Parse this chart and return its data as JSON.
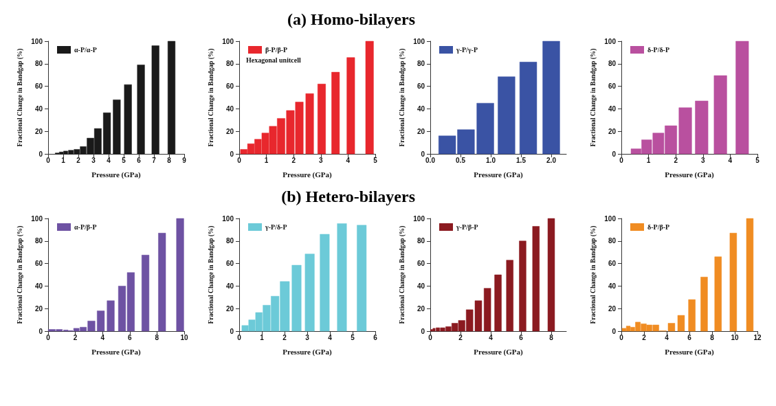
{
  "chart_data": [
    {
      "type": "bar",
      "xlabel": "Pressure (GPa)",
      "ylabel": "Fractional Change in Bandgap (%)",
      "legend": "top left",
      "grid": false,
      "xlim": [
        0,
        9
      ],
      "xticks": [
        0,
        1,
        2,
        3,
        4,
        5,
        6,
        7,
        8,
        9
      ],
      "ylim": [
        0,
        100
      ],
      "yticks": [
        0,
        20,
        40,
        60,
        80,
        100
      ],
      "series": [
        {
          "name": "α-P/α-P",
          "color": "#1a1a1a",
          "x": [
            0.6,
            0.87,
            1.16,
            1.51,
            1.9,
            2.32,
            2.8,
            3.29,
            3.89,
            4.54,
            5.28,
            6.14,
            7.1,
            8.16
          ],
          "values": [
            0.8,
            1.7,
            2.5,
            3.2,
            4,
            6.5,
            14,
            22.5,
            36.5,
            48,
            61.5,
            79,
            96,
            100
          ]
        }
      ]
    },
    {
      "type": "bar",
      "title": "(a) Homo-bilayers",
      "xlabel": "Pressure (GPa)",
      "ylabel": "Fractional Change in Bandgap (%)",
      "legend": "top left",
      "grid": false,
      "annotations": [
        "Hexagonal unitcell"
      ],
      "xlim": [
        0,
        5
      ],
      "xticks": [
        0,
        1,
        2,
        3,
        4,
        5
      ],
      "ylim": [
        0,
        100
      ],
      "yticks": [
        0,
        20,
        40,
        60,
        80,
        100
      ],
      "series": [
        {
          "name": "β-P/β-P",
          "color": "#e8272d",
          "x": [
            0.17,
            0.43,
            0.69,
            0.96,
            1.24,
            1.54,
            1.88,
            2.21,
            2.59,
            3.03,
            3.54,
            4.1,
            4.79
          ],
          "values": [
            4,
            9,
            13,
            18.5,
            24.5,
            31.5,
            38.5,
            46,
            53.5,
            62,
            72.5,
            85.5,
            100
          ]
        }
      ]
    },
    {
      "type": "bar",
      "xlabel": "Pressure (GPa)",
      "ylabel": "Fractional Change in Bandgap (%)",
      "legend": "top left",
      "grid": false,
      "xlim": [
        0,
        2.25
      ],
      "xticks": [
        {
          "value": 0,
          "label": "0.0"
        },
        {
          "value": 0.5,
          "label": "0.5"
        },
        {
          "value": 1,
          "label": "1.0"
        },
        {
          "value": 1.5,
          "label": "1.5"
        },
        {
          "value": 2,
          "label": "2.0"
        }
      ],
      "ylim": [
        0,
        100
      ],
      "yticks": [
        0,
        20,
        40,
        60,
        80,
        100
      ],
      "series": [
        {
          "name": "γ-P/γ-P",
          "color": "#3a53a4",
          "x": [
            0.28,
            0.59,
            0.91,
            1.26,
            1.62,
            2.0
          ],
          "values": [
            16,
            21.5,
            45,
            68.5,
            81.5,
            100
          ]
        }
      ]
    },
    {
      "type": "bar",
      "xlabel": "Pressure (GPa)",
      "ylabel": "Fractional Change in Bandgap (%)",
      "legend": "top left",
      "grid": false,
      "xlim": [
        0,
        5
      ],
      "xticks": [
        0,
        1,
        2,
        3,
        4,
        5
      ],
      "ylim": [
        0,
        100
      ],
      "yticks": [
        0,
        20,
        40,
        60,
        80,
        100
      ],
      "series": [
        {
          "name": "δ-P/δ-P",
          "color": "#b9509f",
          "x": [
            0.54,
            0.93,
            1.36,
            1.82,
            2.35,
            2.95,
            3.64,
            4.44
          ],
          "values": [
            4.5,
            12.5,
            18.5,
            25,
            41,
            47,
            69.5,
            100
          ]
        }
      ]
    },
    {
      "type": "bar",
      "xlabel": "Pressure (GPa)",
      "ylabel": "Fractional Change in Bandgap (%)",
      "legend": "top left",
      "grid": false,
      "xlim": [
        0,
        10
      ],
      "xticks": [
        0,
        2,
        4,
        6,
        8,
        10
      ],
      "ylim": [
        0,
        100
      ],
      "yticks": [
        0,
        20,
        40,
        60,
        80,
        100
      ],
      "series": [
        {
          "name": "α-P/β-P",
          "color": "#6e52a3",
          "x": [
            0.27,
            0.82,
            1.3,
            1.65,
            2.08,
            2.58,
            3.18,
            3.87,
            4.6,
            5.43,
            6.08,
            7.15,
            8.37,
            9.7
          ],
          "values": [
            1.5,
            1.5,
            1,
            0.5,
            2.5,
            3.5,
            9,
            18,
            27,
            40,
            52,
            67.5,
            87,
            100
          ]
        }
      ]
    },
    {
      "type": "bar",
      "title": "(b) Hetero-bilayers",
      "xlabel": "Pressure (GPa)",
      "ylabel": "Fractional Change in Bandgap (%)",
      "legend": "top left",
      "grid": false,
      "xlim": [
        0,
        6
      ],
      "xticks": [
        0,
        1,
        2,
        3,
        4,
        5,
        6
      ],
      "ylim": [
        0,
        100
      ],
      "yticks": [
        0,
        20,
        40,
        60,
        80,
        100
      ],
      "series": [
        {
          "name": "γ-P/δ-P",
          "color": "#6ccad8",
          "x": [
            0.26,
            0.56,
            0.87,
            1.21,
            1.58,
            2.01,
            2.53,
            3.11,
            3.77,
            4.53,
            5.4
          ],
          "values": [
            5,
            10,
            16.5,
            23,
            31,
            44,
            58.5,
            68.5,
            86,
            95.5,
            94
          ]
        }
      ]
    },
    {
      "type": "bar",
      "xlabel": "Pressure (GPa)",
      "ylabel": "Fractional Change in Bandgap (%)",
      "legend": "top left",
      "grid": false,
      "xlim": [
        0,
        9
      ],
      "xticks": [
        0,
        2,
        4,
        6,
        8
      ],
      "ylim": [
        0,
        100
      ],
      "yticks": [
        0,
        20,
        40,
        60,
        80,
        100
      ],
      "series": [
        {
          "name": "γ-P/β-P",
          "color": "#8b1a20",
          "x": [
            0.09,
            0.25,
            0.5,
            0.82,
            1.2,
            1.62,
            2.08,
            2.6,
            3.18,
            3.78,
            4.48,
            5.26,
            6.11,
            6.99,
            8.0
          ],
          "values": [
            1.5,
            2.5,
            3,
            3,
            4,
            7,
            9.5,
            19,
            27,
            38,
            50,
            63,
            80,
            93,
            100
          ]
        }
      ]
    },
    {
      "type": "bar",
      "xlabel": "Pressure (GPa)",
      "ylabel": "Fractional Change in Bandgap (%)",
      "legend": "top left",
      "grid": false,
      "xlim": [
        0,
        12
      ],
      "xticks": [
        0,
        2,
        4,
        6,
        8,
        10,
        12
      ],
      "ylim": [
        0,
        100
      ],
      "yticks": [
        0,
        20,
        40,
        60,
        80,
        100
      ],
      "series": [
        {
          "name": "δ-P/β-P",
          "color": "#f08c22",
          "x": [
            0.24,
            0.61,
            1.0,
            1.46,
            1.97,
            2.47,
            3.04,
            3.67,
            4.42,
            5.27,
            6.22,
            7.3,
            8.53,
            9.87,
            11.33
          ],
          "values": [
            2.5,
            4.5,
            3.5,
            8,
            6.5,
            5.5,
            5.5,
            0.3,
            7,
            14,
            28,
            48,
            66,
            87,
            100
          ]
        }
      ]
    }
  ]
}
